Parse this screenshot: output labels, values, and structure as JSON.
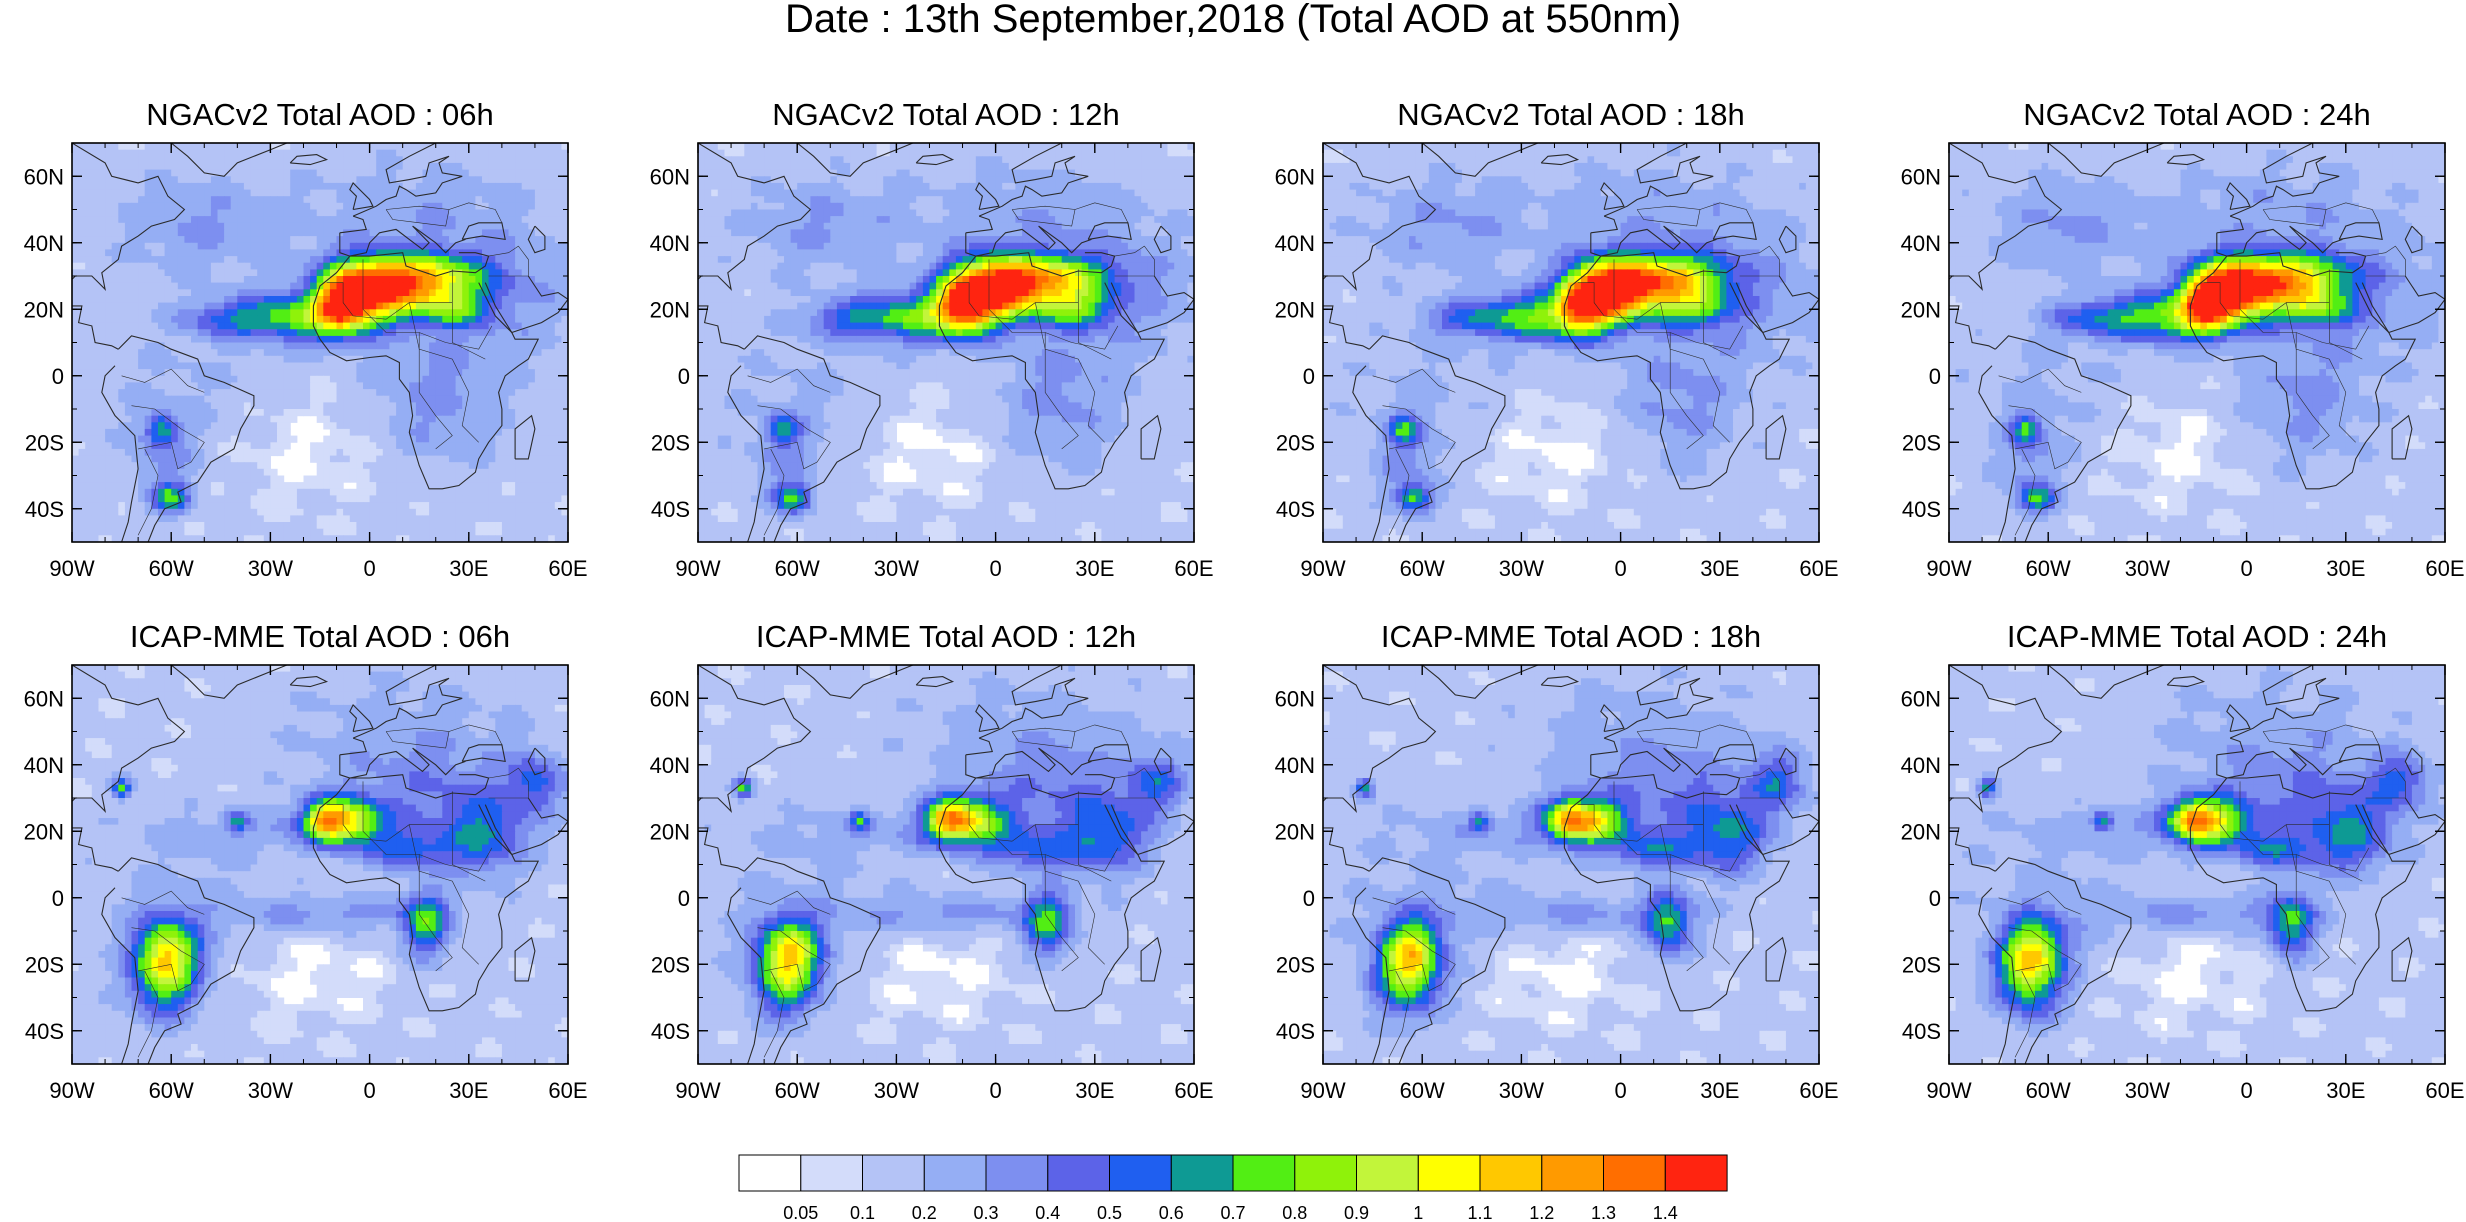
{
  "title": "Date : 13th September,2018 (Total AOD at 550nm)",
  "panels": [
    {
      "title": "NGACv2 Total AOD : 06h",
      "model": "ngac",
      "hour": 6
    },
    {
      "title": "NGACv2 Total AOD : 12h",
      "model": "ngac",
      "hour": 12
    },
    {
      "title": "NGACv2 Total AOD : 18h",
      "model": "ngac",
      "hour": 18
    },
    {
      "title": "NGACv2 Total AOD : 24h",
      "model": "ngac",
      "hour": 24
    },
    {
      "title": "ICAP-MME Total AOD : 06h",
      "model": "icap",
      "hour": 6
    },
    {
      "title": "ICAP-MME Total AOD : 12h",
      "model": "icap",
      "hour": 12
    },
    {
      "title": "ICAP-MME Total AOD : 18h",
      "model": "icap",
      "hour": 18
    },
    {
      "title": "ICAP-MME Total AOD : 24h",
      "model": "icap",
      "hour": 24
    }
  ],
  "map_extent": {
    "lon": [
      -90,
      60
    ],
    "lat": [
      -50,
      70
    ]
  },
  "lon_ticks": [
    {
      "value": -90,
      "label": "90W"
    },
    {
      "value": -60,
      "label": "60W"
    },
    {
      "value": -30,
      "label": "30W"
    },
    {
      "value": 0,
      "label": "0"
    },
    {
      "value": 30,
      "label": "30E"
    },
    {
      "value": 60,
      "label": "60E"
    }
  ],
  "lat_ticks": [
    {
      "value": 60,
      "label": "60N"
    },
    {
      "value": 40,
      "label": "40N"
    },
    {
      "value": 20,
      "label": "20N"
    },
    {
      "value": 0,
      "label": "0"
    },
    {
      "value": -20,
      "label": "20S"
    },
    {
      "value": -40,
      "label": "40S"
    }
  ],
  "colorbar": {
    "labels": [
      "0.05",
      "0.1",
      "0.2",
      "0.3",
      "0.4",
      "0.5",
      "0.6",
      "0.7",
      "0.8",
      "0.9",
      "1",
      "1.1",
      "1.2",
      "1.3",
      "1.4"
    ],
    "colors": [
      "#ffffff",
      "#d3dcfa",
      "#b4c3f6",
      "#95aef4",
      "#7d8ff0",
      "#5c63e8",
      "#1f5ff0",
      "#0e9a94",
      "#52ee14",
      "#8ff20a",
      "#c2f53a",
      "#ffff00",
      "#ffc800",
      "#ff9a00",
      "#ff6e00",
      "#ff2410"
    ]
  },
  "colors": {
    "coast": "#2a2a2a",
    "frame": "#000000"
  }
}
